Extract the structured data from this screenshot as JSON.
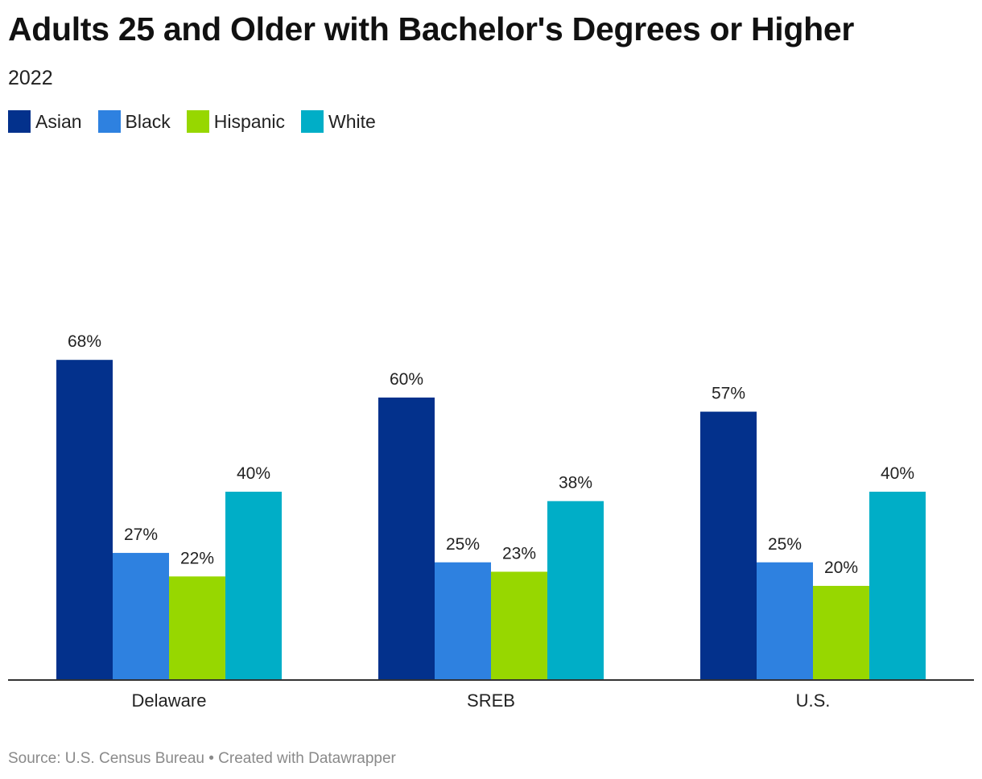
{
  "header": {
    "title": "Adults 25 and Older with Bachelor's Degrees or Higher",
    "subtitle": "2022"
  },
  "footer": {
    "source": "Source: U.S. Census Bureau • Created with Datawrapper"
  },
  "chart_data": {
    "type": "bar",
    "title": "Adults 25 and Older with Bachelor's Degrees or Higher",
    "subtitle": "2022",
    "categories": [
      "Delaware",
      "SREB",
      "U.S."
    ],
    "series": [
      {
        "name": "Asian",
        "color": "#03318c",
        "values": [
          68,
          60,
          57
        ],
        "labels": [
          "68%",
          "60%",
          "57%"
        ]
      },
      {
        "name": "Black",
        "color": "#2e81e0",
        "values": [
          27,
          25,
          25
        ],
        "labels": [
          "27%",
          "25%",
          "25%"
        ]
      },
      {
        "name": "Hispanic",
        "color": "#97d700",
        "values": [
          22,
          23,
          20
        ],
        "labels": [
          "22%",
          "23%",
          "20%"
        ]
      },
      {
        "name": "White",
        "color": "#00aec7",
        "values": [
          40,
          38,
          40
        ],
        "labels": [
          "40%",
          "38%",
          "40%"
        ]
      }
    ],
    "ylim": [
      0,
      68
    ],
    "grid": false,
    "legend": "top-left",
    "xlabel": "",
    "ylabel": ""
  }
}
